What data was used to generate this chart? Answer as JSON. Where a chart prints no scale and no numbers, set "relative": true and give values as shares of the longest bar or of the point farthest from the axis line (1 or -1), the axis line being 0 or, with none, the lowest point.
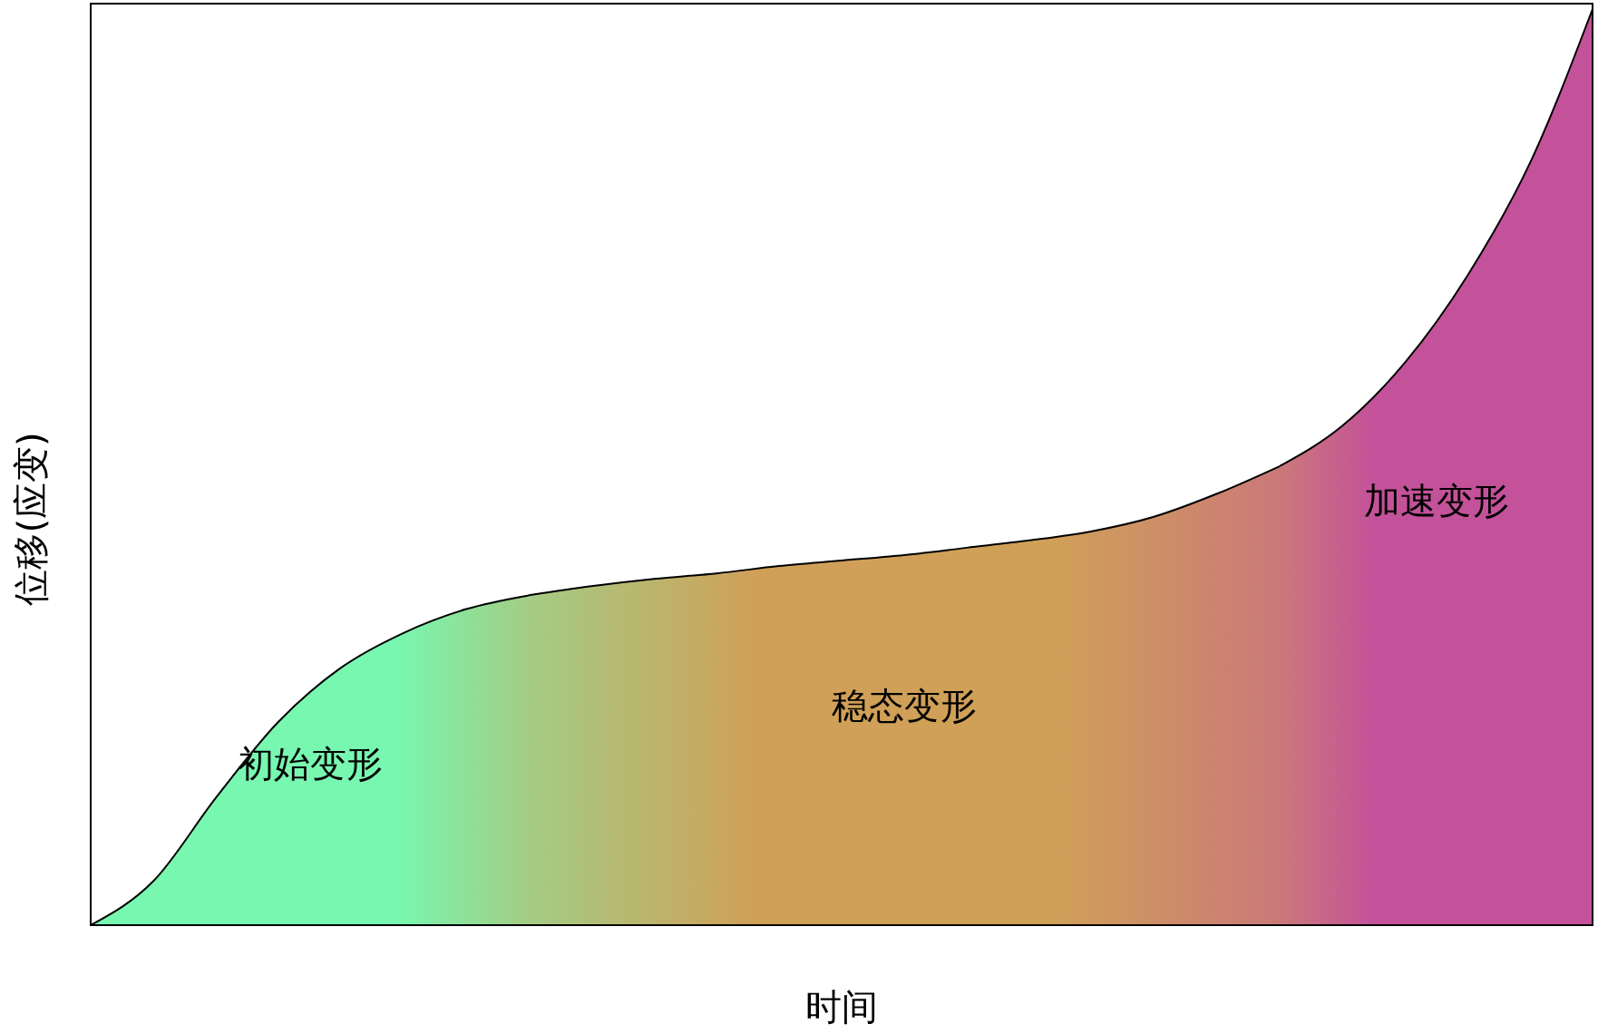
{
  "chart_data": {
    "type": "area",
    "relative": true,
    "xlabel": "时间",
    "ylabel": "位移(应变)",
    "categories": [
      null,
      null,
      null,
      null,
      null,
      null,
      null,
      null,
      null,
      null,
      null,
      null,
      null,
      null,
      null,
      null,
      null,
      null,
      null,
      null,
      null,
      null,
      null,
      null,
      null
    ],
    "series": [
      {
        "name": "初始变形",
        "color": "#78f7b0",
        "values": [
          0,
          0.048,
          0.139,
          0.222,
          0.281,
          0.319,
          0.345,
          0.36,
          null,
          null,
          null,
          null,
          null,
          null,
          null,
          null,
          null,
          null,
          null,
          null,
          null,
          null,
          null,
          null,
          null
        ]
      },
      {
        "name": "稳态变形",
        "color": "#d0a058",
        "values": [
          null,
          null,
          null,
          null,
          null,
          null,
          null,
          0.36,
          0.37,
          0.378,
          0.384,
          0.392,
          0.398,
          0.404,
          0.412,
          0.42,
          0.43,
          0.446,
          0.471,
          0.501,
          null,
          null,
          null,
          null,
          null
        ]
      },
      {
        "name": "加速变形",
        "color": "#c4529a",
        "values": [
          null,
          null,
          null,
          null,
          null,
          null,
          null,
          null,
          null,
          null,
          null,
          null,
          null,
          null,
          null,
          null,
          null,
          null,
          null,
          0.501,
          0.545,
          0.614,
          0.709,
          0.832,
          1
        ]
      }
    ]
  }
}
